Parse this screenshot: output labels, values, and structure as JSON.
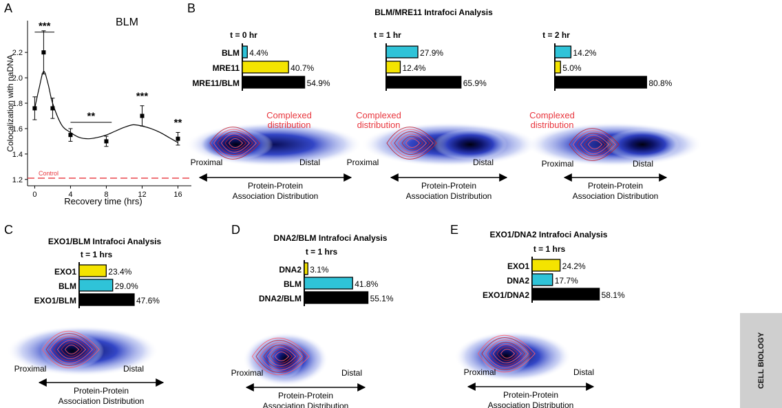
{
  "panels": {
    "A": "A",
    "B": "B",
    "C": "C",
    "D": "D",
    "E": "E"
  },
  "colors": {
    "blm": "#2fc3d8",
    "mre11": "#f4e400",
    "exo1": "#f4e400",
    "dna2_yellow": "#f4e400",
    "dna2_cyan": "#2fc3d8",
    "complex": "#000000",
    "red": "#e8343c",
    "density": "#1a2a9a"
  },
  "chart_data": [
    {
      "type": "line",
      "panel": "A",
      "title": "BLM",
      "xlabel": "Recovery time (hrs)",
      "ylabel": "Colocalization with naDNA",
      "x_ticks": [
        "0",
        "4",
        "8",
        "12",
        "16"
      ],
      "y_ticks": [
        "1.2",
        "1.4",
        "1.6",
        "1.8",
        "2.0",
        "2.2"
      ],
      "xlim": [
        -0.8,
        17.5
      ],
      "ylim": [
        1.15,
        2.45
      ],
      "points": [
        {
          "x": 0,
          "y": 1.76,
          "err": 0.09
        },
        {
          "x": 1,
          "y": 2.2,
          "err": 0.17
        },
        {
          "x": 2,
          "y": 1.76,
          "err": 0.08
        },
        {
          "x": 4,
          "y": 1.55,
          "err": 0.05
        },
        {
          "x": 8,
          "y": 1.5,
          "err": 0.04
        },
        {
          "x": 12,
          "y": 1.7,
          "err": 0.08
        },
        {
          "x": 16,
          "y": 1.52,
          "err": 0.05
        }
      ],
      "fit": [
        [
          0,
          1.76
        ],
        [
          0.5,
          1.92
        ],
        [
          1,
          2.05
        ],
        [
          1.5,
          1.95
        ],
        [
          2,
          1.8
        ],
        [
          3,
          1.63
        ],
        [
          4,
          1.57
        ],
        [
          5,
          1.53
        ],
        [
          6,
          1.52
        ],
        [
          7,
          1.53
        ],
        [
          8,
          1.55
        ],
        [
          9,
          1.58
        ],
        [
          10,
          1.61
        ],
        [
          11,
          1.63
        ],
        [
          12,
          1.62
        ],
        [
          13,
          1.6
        ],
        [
          14,
          1.57
        ],
        [
          15,
          1.53
        ],
        [
          16,
          1.49
        ]
      ],
      "control": {
        "y": 1.21,
        "label": "Control"
      },
      "significance": [
        {
          "label": "***",
          "x1": 0,
          "x2": 2.2,
          "y": 2.36
        },
        {
          "label": "**",
          "x1": 4,
          "x2": 8.6,
          "y": 1.65
        },
        {
          "label": "***",
          "x": 12,
          "y": 1.83
        },
        {
          "label": "**",
          "x": 16,
          "y": 1.62
        }
      ]
    },
    {
      "type": "bar",
      "panel": "B",
      "title": "BLM/MRE11 Intrafoci Analysis",
      "xlim": [
        0,
        100
      ],
      "groups": [
        {
          "time": "t = 0 hr",
          "bars": [
            {
              "label": "BLM",
              "value": 4.4,
              "text": "4.4%",
              "color": "#2fc3d8"
            },
            {
              "label": "MRE11",
              "value": 40.7,
              "text": "40.7%",
              "color": "#f4e400"
            },
            {
              "label": "MRE11/BLM",
              "value": 54.9,
              "text": "54.9%",
              "color": "#000000"
            }
          ]
        },
        {
          "time": "t = 1 hr",
          "bars": [
            {
              "label": "",
              "value": 27.9,
              "text": "27.9%",
              "color": "#2fc3d8"
            },
            {
              "label": "",
              "value": 12.4,
              "text": "12.4%",
              "color": "#f4e400"
            },
            {
              "label": "",
              "value": 65.9,
              "text": "65.9%",
              "color": "#000000"
            }
          ]
        },
        {
          "time": "t = 2 hr",
          "bars": [
            {
              "label": "",
              "value": 14.2,
              "text": "14.2%",
              "color": "#2fc3d8"
            },
            {
              "label": "",
              "value": 5.0,
              "text": "5.0%",
              "color": "#f4e400"
            },
            {
              "label": "",
              "value": 80.8,
              "text": "80.8%",
              "color": "#000000"
            }
          ]
        }
      ]
    },
    {
      "type": "bar",
      "panel": "C",
      "title": "EXO1/BLM Intrafoci Analysis",
      "time": "t = 1 hrs",
      "xlim": [
        0,
        100
      ],
      "bars": [
        {
          "label": "EXO1",
          "value": 23.4,
          "text": "23.4%",
          "color": "#f4e400"
        },
        {
          "label": "BLM",
          "value": 29.0,
          "text": "29.0%",
          "color": "#2fc3d8"
        },
        {
          "label": "EXO1/BLM",
          "value": 47.6,
          "text": "47.6%",
          "color": "#000000"
        }
      ]
    },
    {
      "type": "bar",
      "panel": "D",
      "title": "DNA2/BLM Intrafoci Analysis",
      "time": "t = 1 hrs",
      "xlim": [
        0,
        100
      ],
      "bars": [
        {
          "label": "DNA2",
          "value": 3.1,
          "text": "3.1%",
          "color": "#f4e400"
        },
        {
          "label": "BLM",
          "value": 41.8,
          "text": "41.8%",
          "color": "#2fc3d8"
        },
        {
          "label": "DNA2/BLM",
          "value": 55.1,
          "text": "55.1%",
          "color": "#000000"
        }
      ]
    },
    {
      "type": "bar",
      "panel": "E",
      "title": "EXO1/DNA2 Intrafoci Analysis",
      "time": "t = 1 hrs",
      "xlim": [
        0,
        100
      ],
      "bars": [
        {
          "label": "EXO1",
          "value": 24.2,
          "text": "24.2%",
          "color": "#f4e400"
        },
        {
          "label": "DNA2",
          "value": 17.7,
          "text": "17.7%",
          "color": "#2fc3d8"
        },
        {
          "label": "EXO1/DNA2",
          "value": 58.1,
          "text": "58.1%",
          "color": "#000000"
        }
      ]
    }
  ],
  "distributions": [
    {
      "id": "B0",
      "annotation": [
        "Complexed",
        "distribution"
      ],
      "proximal": "Proximal",
      "distal": "Distal",
      "axis": [
        "Protein-Protein",
        "Association Distribution"
      ]
    },
    {
      "id": "B1",
      "annotation": [
        "Complexed",
        "distribution"
      ],
      "proximal": "Proximal",
      "distal": "Distal",
      "axis": [
        "Protein-Protein",
        "Association Distribution"
      ]
    },
    {
      "id": "B2",
      "annotation": [
        "Complexed",
        "distribution"
      ],
      "proximal": "Proximal",
      "distal": "Distal",
      "axis": [
        "Protein-Protein",
        "Association Distribution"
      ]
    },
    {
      "id": "C",
      "proximal": "Proximal",
      "distal": "Distal",
      "axis": [
        "Protein-Protein",
        "Association Distribution"
      ]
    },
    {
      "id": "D",
      "proximal": "Proximal",
      "distal": "Distal",
      "axis": [
        "Protein-Protein",
        "Association Distribution"
      ]
    },
    {
      "id": "E",
      "proximal": "Proximal",
      "distal": "Distal",
      "axis": [
        "Protein-Protein",
        "Association Distribution"
      ]
    }
  ],
  "side_banner": "CELL BIOLOGY"
}
